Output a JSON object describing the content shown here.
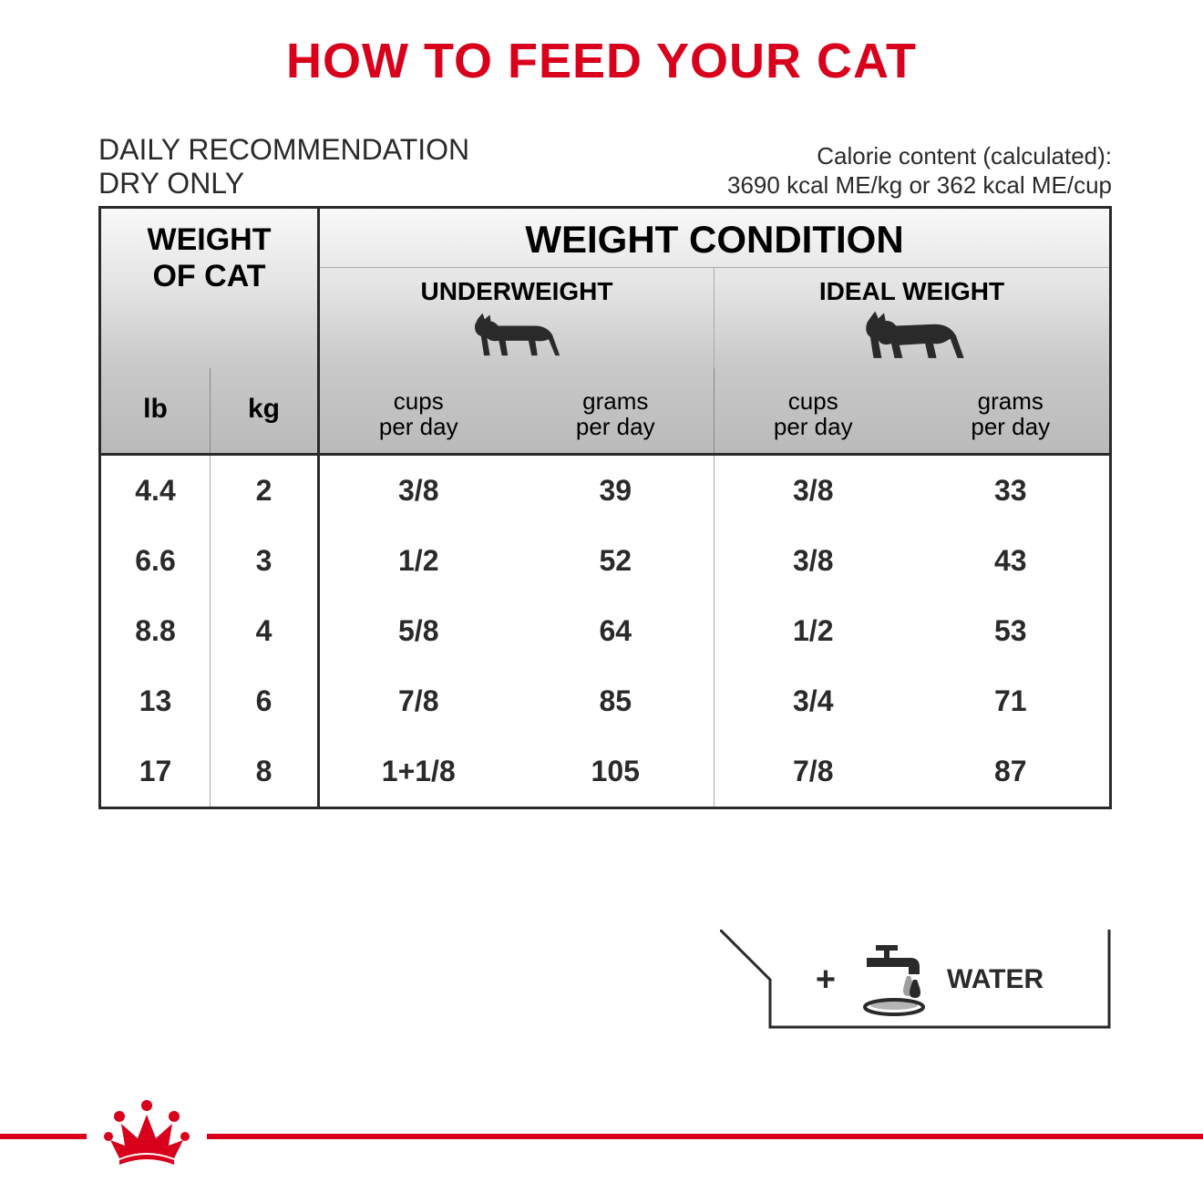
{
  "colors": {
    "brand_red": "#d8001b",
    "text": "#2a2a2a",
    "border": "#2a2a2a",
    "grad_top": "#f8f8f8",
    "grad_bot": "#bababa"
  },
  "title": "HOW TO FEED YOUR CAT",
  "subhead": {
    "line1": "DAILY RECOMMENDATION",
    "line2": "DRY ONLY"
  },
  "calorie": {
    "line1": "Calorie content (calculated):",
    "line2": "3690 kcal ME/kg or 362 kcal ME/cup"
  },
  "headers": {
    "weight_of_cat": "WEIGHT OF CAT",
    "weight_condition": "WEIGHT CONDITION",
    "underweight": "UNDERWEIGHT",
    "ideal_weight": "IDEAL WEIGHT",
    "lb": "lb",
    "kg": "kg",
    "cups_per_day": "cups per day",
    "grams_per_day": "grams per day"
  },
  "rows": [
    {
      "lb": "4.4",
      "kg": "2",
      "uw_cups": "3/8",
      "uw_grams": "39",
      "id_cups": "3/8",
      "id_grams": "33"
    },
    {
      "lb": "6.6",
      "kg": "3",
      "uw_cups": "1/2",
      "uw_grams": "52",
      "id_cups": "3/8",
      "id_grams": "43"
    },
    {
      "lb": "8.8",
      "kg": "4",
      "uw_cups": "5/8",
      "uw_grams": "64",
      "id_cups": "1/2",
      "id_grams": "53"
    },
    {
      "lb": "13",
      "kg": "6",
      "uw_cups": "7/8",
      "uw_grams": "85",
      "id_cups": "3/4",
      "id_grams": "71"
    },
    {
      "lb": "17",
      "kg": "8",
      "uw_cups": "1+1/8",
      "uw_grams": "105",
      "id_cups": "7/8",
      "id_grams": "87"
    }
  ],
  "water_label": "WATER",
  "cat_icon": {
    "underweight_scale": 0.92,
    "ideal_scale": 1.0,
    "color": "#2a2a2a"
  }
}
